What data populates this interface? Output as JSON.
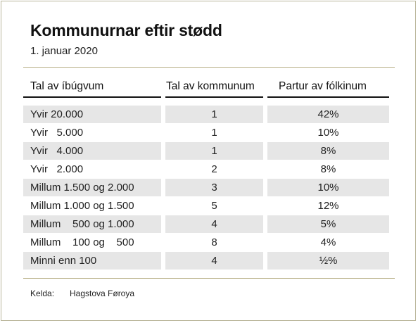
{
  "title": "Kommunurnar eftir stødd",
  "subtitle": "1. januar 2020",
  "headers": [
    "Tal av íbúgvum",
    "Tal av kommunum",
    "Partur av fólkinum"
  ],
  "rows": [
    [
      "Yvir 20.000",
      "1",
      "42%"
    ],
    [
      "Yvir   5.000",
      "1",
      "10%"
    ],
    [
      "Yvir   4.000",
      "1",
      "8%"
    ],
    [
      "Yvir   2.000",
      "2",
      "8%"
    ],
    [
      "Millum 1.500 og 2.000",
      "3",
      "10%"
    ],
    [
      "Millum 1.000 og 1.500",
      "5",
      "12%"
    ],
    [
      "Millum    500 og 1.000",
      "4",
      "5%"
    ],
    [
      "Millum    100 og    500",
      "8",
      "4%"
    ],
    [
      "Minni enn 100",
      "4",
      "½%"
    ]
  ],
  "source": {
    "label": "Kelda:",
    "value": "Hagstova Føroya"
  }
}
